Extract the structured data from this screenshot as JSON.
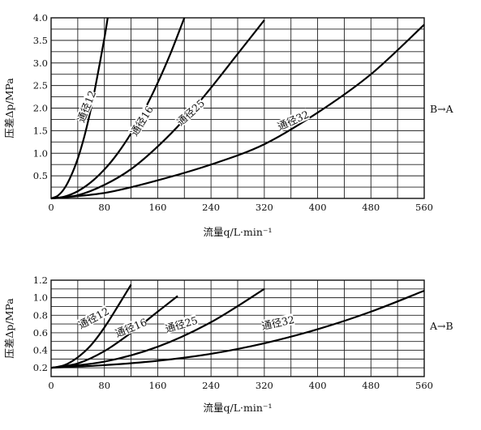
{
  "chart_data": [
    {
      "type": "line",
      "xlabel": "流量q/L·min⁻¹",
      "ylabel": "压差Δp/MPa",
      "xlim": [
        0,
        560
      ],
      "ylim": [
        0,
        4.0
      ],
      "xticks": [
        0,
        80,
        160,
        240,
        320,
        400,
        480,
        560
      ],
      "yticks": [
        0.5,
        1.0,
        1.5,
        2.0,
        2.5,
        3.0,
        3.5,
        4.0
      ],
      "xtick_labels": [
        "0",
        "80",
        "160",
        "240",
        "320",
        "400",
        "480",
        "560"
      ],
      "ytick_labels": [
        "0.5",
        "1.0",
        "1.5",
        "2.0",
        "2.5",
        "3.0",
        "3.5",
        "4.0"
      ],
      "grid": true,
      "direction_label": "B→A",
      "series": [
        {
          "name": "通径12",
          "x": [
            0,
            10,
            20,
            30,
            40,
            50,
            60,
            70,
            80,
            85
          ],
          "y": [
            0,
            0.06,
            0.22,
            0.5,
            0.88,
            1.38,
            2.0,
            2.75,
            3.55,
            4.0
          ]
        },
        {
          "name": "通径16",
          "x": [
            0,
            20,
            40,
            60,
            80,
            100,
            120,
            140,
            160,
            180,
            200
          ],
          "y": [
            0,
            0.04,
            0.16,
            0.36,
            0.64,
            1.0,
            1.44,
            1.96,
            2.56,
            3.24,
            4.0
          ]
        },
        {
          "name": "通径25",
          "x": [
            0,
            40,
            80,
            120,
            160,
            200,
            240,
            280,
            320
          ],
          "y": [
            0,
            0.07,
            0.3,
            0.65,
            1.15,
            1.75,
            2.45,
            3.2,
            3.95
          ]
        },
        {
          "name": "通径32",
          "x": [
            0,
            80,
            160,
            240,
            320,
            400,
            480,
            560
          ],
          "y": [
            0,
            0.12,
            0.4,
            0.75,
            1.2,
            1.9,
            2.75,
            3.85
          ]
        }
      ]
    },
    {
      "type": "line",
      "xlabel": "流量q/L·min⁻¹",
      "ylabel": "压差Δp/MPa",
      "xlim": [
        0,
        560
      ],
      "ylim": [
        0.1,
        1.2
      ],
      "xticks": [
        0,
        80,
        160,
        240,
        320,
        400,
        480,
        560
      ],
      "yticks": [
        0.2,
        0.4,
        0.6,
        0.8,
        1.0,
        1.2
      ],
      "xtick_labels": [
        "0",
        "80",
        "160",
        "240",
        "320",
        "400",
        "480",
        "560"
      ],
      "ytick_labels": [
        "0.2",
        "0.4",
        "0.6",
        "0.8",
        "1.0",
        "1.2"
      ],
      "grid": true,
      "direction_label": "A→B",
      "series": [
        {
          "name": "通径12",
          "x": [
            0,
            20,
            40,
            60,
            80,
            100,
            120
          ],
          "y": [
            0.2,
            0.23,
            0.32,
            0.46,
            0.66,
            0.9,
            1.15
          ]
        },
        {
          "name": "通径16",
          "x": [
            0,
            40,
            80,
            120,
            160,
            190
          ],
          "y": [
            0.2,
            0.25,
            0.39,
            0.6,
            0.84,
            1.02
          ]
        },
        {
          "name": "通径25",
          "x": [
            0,
            80,
            160,
            240,
            320
          ],
          "y": [
            0.2,
            0.27,
            0.44,
            0.72,
            1.1
          ]
        },
        {
          "name": "通径32",
          "x": [
            0,
            80,
            160,
            240,
            320,
            400,
            480,
            560
          ],
          "y": [
            0.2,
            0.23,
            0.28,
            0.36,
            0.48,
            0.64,
            0.84,
            1.08
          ]
        }
      ]
    }
  ]
}
